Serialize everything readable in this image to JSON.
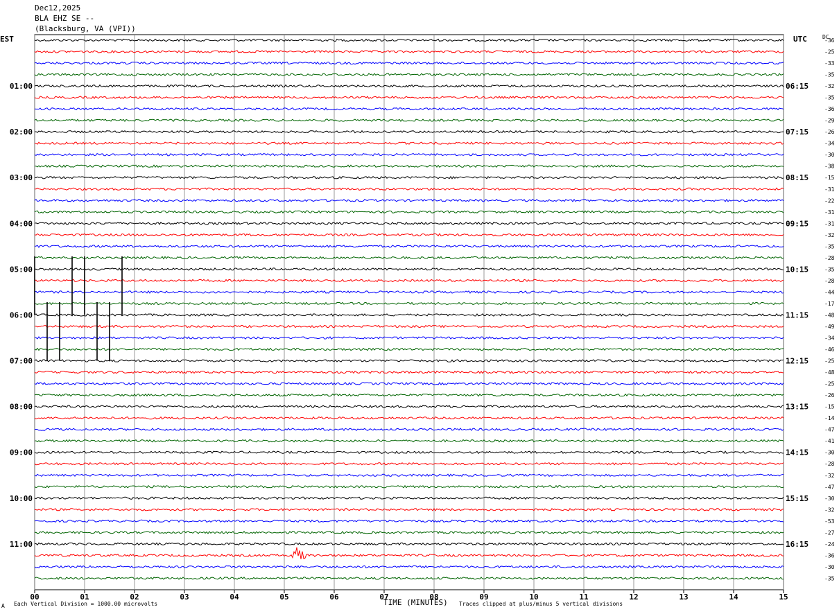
{
  "header": {
    "date": "Dec12,2025",
    "station": "BLA EHZ SE --",
    "location": "(Blacksburg, VA (VPI))"
  },
  "left_axis_title": "EST",
  "right_axis_title": "UTC",
  "dc_title": "DC",
  "footer": {
    "scale_note": "Each Vertical Division = 1000.00 microvolts",
    "x_title": "TIME (MINUTES)",
    "clip_note": "Traces clipped at plus/minus 5 vertical divisions",
    "corner_mark": "A"
  },
  "colors": {
    "black": "#000000",
    "red": "#ff0000",
    "blue": "#0000ff",
    "green": "#006400",
    "grid": "#808080"
  },
  "chart_data": {
    "type": "line",
    "title": "",
    "xlabel": "TIME (MINUTES)",
    "x_ticks": [
      "00",
      "01",
      "02",
      "03",
      "04",
      "05",
      "06",
      "07",
      "08",
      "09",
      "10",
      "11",
      "12",
      "13",
      "14",
      "15"
    ],
    "xlim": [
      0,
      15
    ],
    "trace_count": 48,
    "trace_color_cycle": [
      "black",
      "red",
      "blue",
      "green"
    ],
    "left_hour_labels": [
      "01:00",
      "02:00",
      "03:00",
      "04:00",
      "05:00",
      "06:00",
      "07:00",
      "08:00",
      "09:00",
      "10:00",
      "11:00"
    ],
    "right_hour_labels": [
      "06:15",
      "07:15",
      "08:15",
      "09:15",
      "10:15",
      "11:15",
      "12:15",
      "13:15",
      "14:15",
      "15:15",
      "16:15"
    ],
    "dc_offsets": [
      "-36",
      "-25",
      "-33",
      "-35",
      "-32",
      "-35",
      "-36",
      "-29",
      "-26",
      "-34",
      "-30",
      "-38",
      "-15",
      "-31",
      "-22",
      "-31",
      "-31",
      "-32",
      "-35",
      "-28",
      "-35",
      "-28",
      "-44",
      "-17",
      "-48",
      "-49",
      "-34",
      "-46",
      "-25",
      "-48",
      "-25",
      "-26",
      "-15",
      "-14",
      "-47",
      "-41",
      "-30",
      "-28",
      "-32",
      "-47",
      "-30",
      "-32",
      "-53",
      "-27",
      "-24",
      "-36",
      "-30",
      "-35"
    ],
    "events": [
      {
        "trace": 45,
        "minute": 5.25,
        "description": "seismic burst (red trace)"
      }
    ],
    "spikes": [
      {
        "minute": 0.0,
        "start_trace": 19,
        "end_trace": 24
      },
      {
        "minute": 0.75,
        "start_trace": 19,
        "end_trace": 24
      },
      {
        "minute": 1.0,
        "start_trace": 19,
        "end_trace": 24
      },
      {
        "minute": 1.75,
        "start_trace": 19,
        "end_trace": 24
      },
      {
        "minute": 0.25,
        "start_trace": 23,
        "end_trace": 28
      },
      {
        "minute": 0.5,
        "start_trace": 23,
        "end_trace": 28
      },
      {
        "minute": 1.25,
        "start_trace": 23,
        "end_trace": 28
      },
      {
        "minute": 1.5,
        "start_trace": 23,
        "end_trace": 28
      }
    ]
  }
}
